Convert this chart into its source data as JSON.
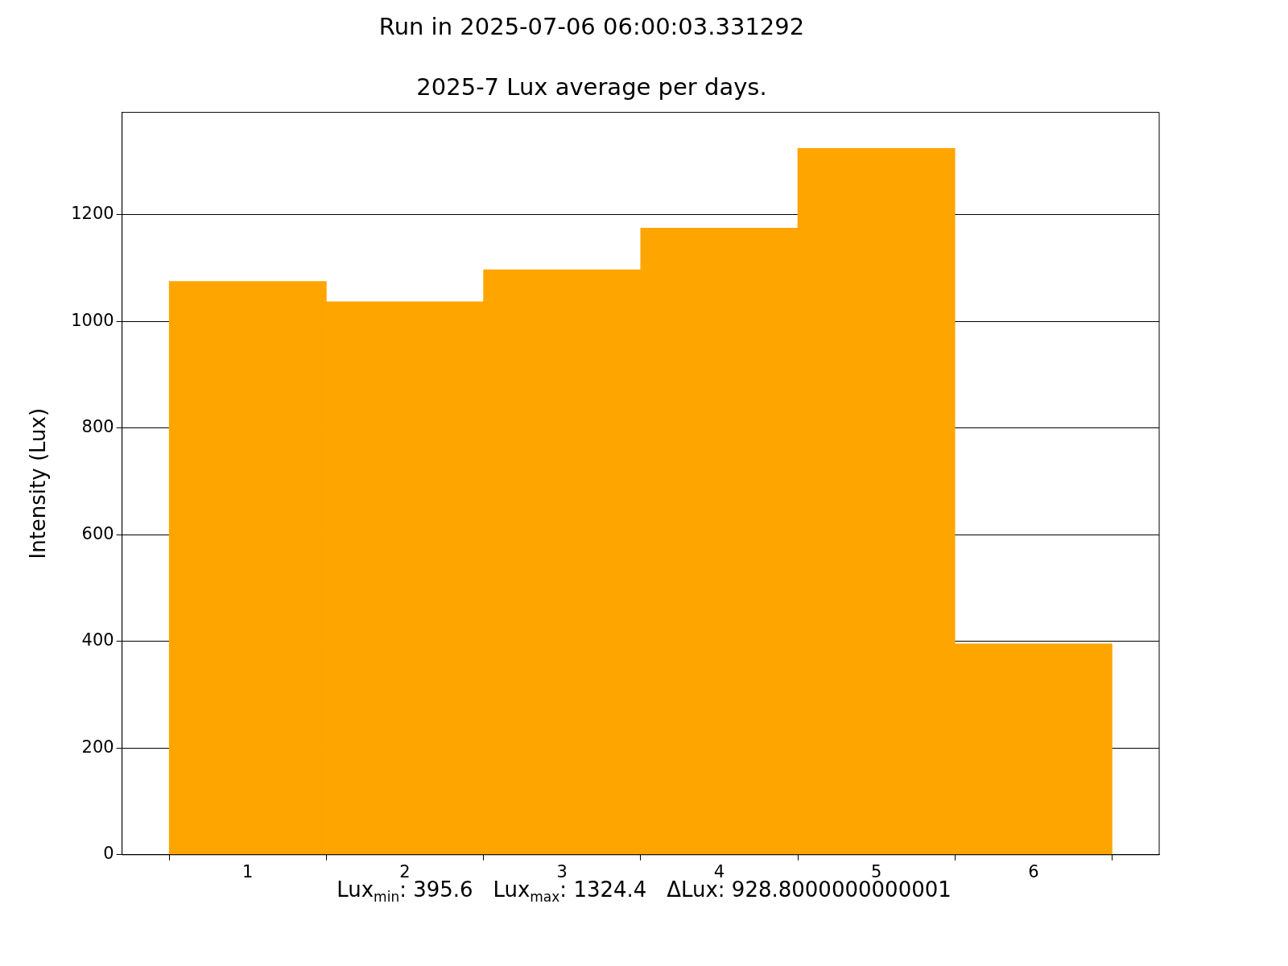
{
  "chart_data": {
    "type": "bar",
    "title": "Run in 2025-07-06 06:00:03.331292",
    "subtitle": "2025-7 Lux average per days.",
    "ylabel": "Intensity (Lux)",
    "x": [
      1,
      2,
      3,
      4,
      5,
      6
    ],
    "values": [
      1075,
      1037,
      1097,
      1175,
      1324.4,
      395.6
    ],
    "color": "#ffa500",
    "xlim": [
      0.2,
      6.8
    ],
    "xticks": [
      1,
      2,
      3,
      4,
      5,
      6
    ],
    "ylim": [
      0,
      1392
    ],
    "yticks": [
      0,
      200,
      400,
      600,
      800,
      1000,
      1200
    ],
    "grid": "y",
    "annotations": [
      "Lux$_{min}$: 395.6   Lux$_{max}$: 1324.4   ΔLux: 928.8000000000001"
    ]
  }
}
